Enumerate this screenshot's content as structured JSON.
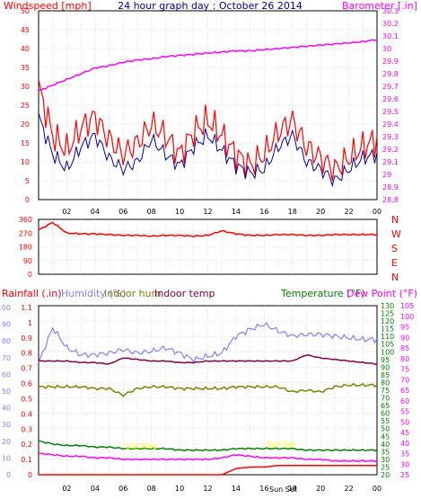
{
  "title": "24 hour graph day : October 26 2014",
  "colors": {
    "windspeed": "#ff0000",
    "windgust_avg": "#000099",
    "barometer": "#ff00ff",
    "direction": "#ff0000",
    "rainfall": "#ff0000",
    "humidity": "#8080ff",
    "indoor_hum": "#808000",
    "indoor_temp": "#800040",
    "temperature": "#008000",
    "dewpoint": "#ff00ff",
    "sunrise_text": "#ffff00"
  },
  "top_chart": {
    "left_label": "Windspeed [mph]",
    "right_label": "Barometer [.in]",
    "left_ticks": [
      "50",
      "45",
      "40",
      "35",
      "30",
      "25",
      "20",
      "15",
      "10",
      "5",
      "0"
    ],
    "right_ticks": [
      "30.3",
      "30.2",
      "30.1",
      "30",
      "29.9",
      "29.8",
      "29.7",
      "29.6",
      "29.5",
      "29.4",
      "29.3",
      "29.2",
      "29.1",
      "29",
      "28.9",
      "28.8"
    ],
    "x_ticks": [
      "02",
      "04",
      "06",
      "08",
      "10",
      "12",
      "14",
      "16",
      "18",
      "20",
      "22",
      "00"
    ]
  },
  "dir_chart": {
    "left_ticks": [
      "360",
      "270",
      "180",
      "90",
      "0"
    ],
    "right_ticks": [
      "N",
      "W",
      "S",
      "E",
      "N"
    ]
  },
  "bottom_chart": {
    "labels": {
      "rainfall": "Rainfall (.in)",
      "humidity": "Humidity (%)",
      "indoor_hum": "Indoor hum",
      "indoor_temp": "Indoor temp",
      "temperature": "Temperature (°F)",
      "dewpoint": "Dew Point (°F)"
    },
    "humidity_ticks": [
      "100",
      "90",
      "80",
      "70",
      "60",
      "50",
      "40",
      "30",
      "20",
      "10",
      "0"
    ],
    "rain_ticks": [
      "1.1",
      "1",
      "0.9",
      "0.8",
      "0.7",
      "0.6",
      "0.5",
      "0.4",
      "0.3",
      "0.2",
      "0.1",
      "0"
    ],
    "temp_ticks": [
      "130",
      "125",
      "120",
      "115",
      "110",
      "105",
      "100",
      "95",
      "90",
      "85",
      "80",
      "75",
      "70",
      "65",
      "60",
      "55",
      "50",
      "45",
      "40",
      "35",
      "30",
      "25",
      "20"
    ],
    "dew_ticks": [
      "105",
      "100",
      "95",
      "90",
      "85",
      "80",
      "75",
      "70",
      "65",
      "60",
      "55",
      "50",
      "45",
      "40",
      "35",
      "30",
      "25"
    ],
    "x_ticks": [
      "02",
      "04",
      "06",
      "08",
      "10",
      "12",
      "14",
      "16",
      "18",
      "20",
      "22",
      "00"
    ],
    "sunrise_label": "Sun Rise",
    "sunset_label": "Sun Set",
    "sun_tick_label": "Sun Set"
  },
  "chart_data": [
    {
      "type": "line",
      "title": "24 hour graph day : October 26 2014",
      "ylabel": "Windspeed [mph]",
      "y2label": "Barometer [.in]",
      "ylim": [
        0,
        50
      ],
      "y2lim": [
        28.7,
        30.35
      ],
      "x_hours": [
        0,
        1,
        2,
        3,
        4,
        5,
        6,
        7,
        8,
        9,
        10,
        11,
        12,
        13,
        14,
        15,
        16,
        17,
        18,
        19,
        20,
        21,
        22,
        23,
        24
      ],
      "series": [
        {
          "values": [
            30,
            17,
            13,
            19,
            22,
            16,
            12,
            15,
            20,
            17,
            12,
            18,
            21,
            17,
            12,
            9,
            12,
            18,
            21,
            14,
            11,
            8,
            11,
            14,
            16
          ]
        },
        {
          "values": [
            22,
            12,
            8,
            14,
            17,
            11,
            8,
            10,
            16,
            12,
            9,
            14,
            17,
            13,
            9,
            7,
            8,
            14,
            17,
            10,
            8,
            5,
            8,
            11,
            12
          ]
        },
        {
          "values": [
            29.65,
            29.7,
            29.75,
            29.8,
            29.85,
            29.87,
            29.9,
            29.92,
            29.93,
            29.95,
            29.96,
            29.97,
            29.98,
            29.99,
            30.0,
            30.0,
            30.01,
            30.02,
            30.03,
            30.04,
            30.05,
            30.06,
            30.07,
            30.08,
            30.1
          ]
        }
      ]
    },
    {
      "type": "line",
      "ylim": [
        0,
        360
      ],
      "x_hours": [
        0,
        1,
        2,
        3,
        4,
        5,
        6,
        7,
        8,
        9,
        10,
        11,
        12,
        13,
        14,
        15,
        16,
        17,
        18,
        19,
        20,
        21,
        22,
        23,
        24
      ],
      "series": [
        {
          "values": [
            290,
            340,
            270,
            265,
            265,
            260,
            255,
            255,
            250,
            255,
            255,
            250,
            255,
            285,
            265,
            255,
            255,
            260,
            260,
            255,
            255,
            260,
            260,
            260,
            260
          ]
        }
      ]
    },
    {
      "type": "line",
      "x_hours": [
        0,
        1,
        2,
        3,
        4,
        5,
        6,
        7,
        8,
        9,
        10,
        11,
        12,
        13,
        14,
        15,
        16,
        17,
        18,
        19,
        20,
        21,
        22,
        23,
        24
      ],
      "series": [
        {
          "values": [
            0,
            0,
            0,
            0,
            0,
            0,
            0,
            0,
            0,
            0,
            0,
            0,
            0,
            0,
            0.04,
            0.05,
            0.05,
            0.06,
            0.06,
            0.06,
            0.06,
            0.06,
            0.06,
            0.06,
            0.06
          ]
        },
        {
          "values": [
            66,
            87,
            75,
            71,
            71,
            72,
            74,
            72,
            73,
            75,
            72,
            68,
            70,
            72,
            82,
            86,
            89,
            85,
            82,
            83,
            83,
            82,
            81,
            80,
            80
          ]
        },
        {
          "values": [
            52,
            52,
            52,
            52,
            51,
            51,
            47,
            51,
            52,
            52,
            51,
            51,
            51,
            51,
            52,
            52,
            52,
            52,
            49,
            50,
            49,
            52,
            53,
            53,
            53
          ]
        },
        {
          "values": [
            94,
            94,
            94,
            93,
            93,
            92,
            96,
            95,
            94,
            94,
            93,
            93,
            94,
            94,
            94,
            94,
            94,
            94,
            94,
            98,
            96,
            95,
            94,
            93,
            92
          ]
        },
        {
          "values": [
            42,
            40,
            39,
            39,
            38,
            38,
            37,
            37,
            37,
            37,
            36,
            36,
            36,
            36,
            37,
            37,
            37,
            37,
            37,
            36,
            36,
            36,
            36,
            36,
            36
          ]
        },
        {
          "values": [
            34,
            33,
            32,
            32,
            31,
            31,
            30,
            30,
            30,
            30,
            30,
            30,
            30,
            31,
            33,
            32,
            31,
            31,
            31,
            30,
            30,
            29,
            29,
            29,
            29
          ]
        }
      ]
    }
  ]
}
